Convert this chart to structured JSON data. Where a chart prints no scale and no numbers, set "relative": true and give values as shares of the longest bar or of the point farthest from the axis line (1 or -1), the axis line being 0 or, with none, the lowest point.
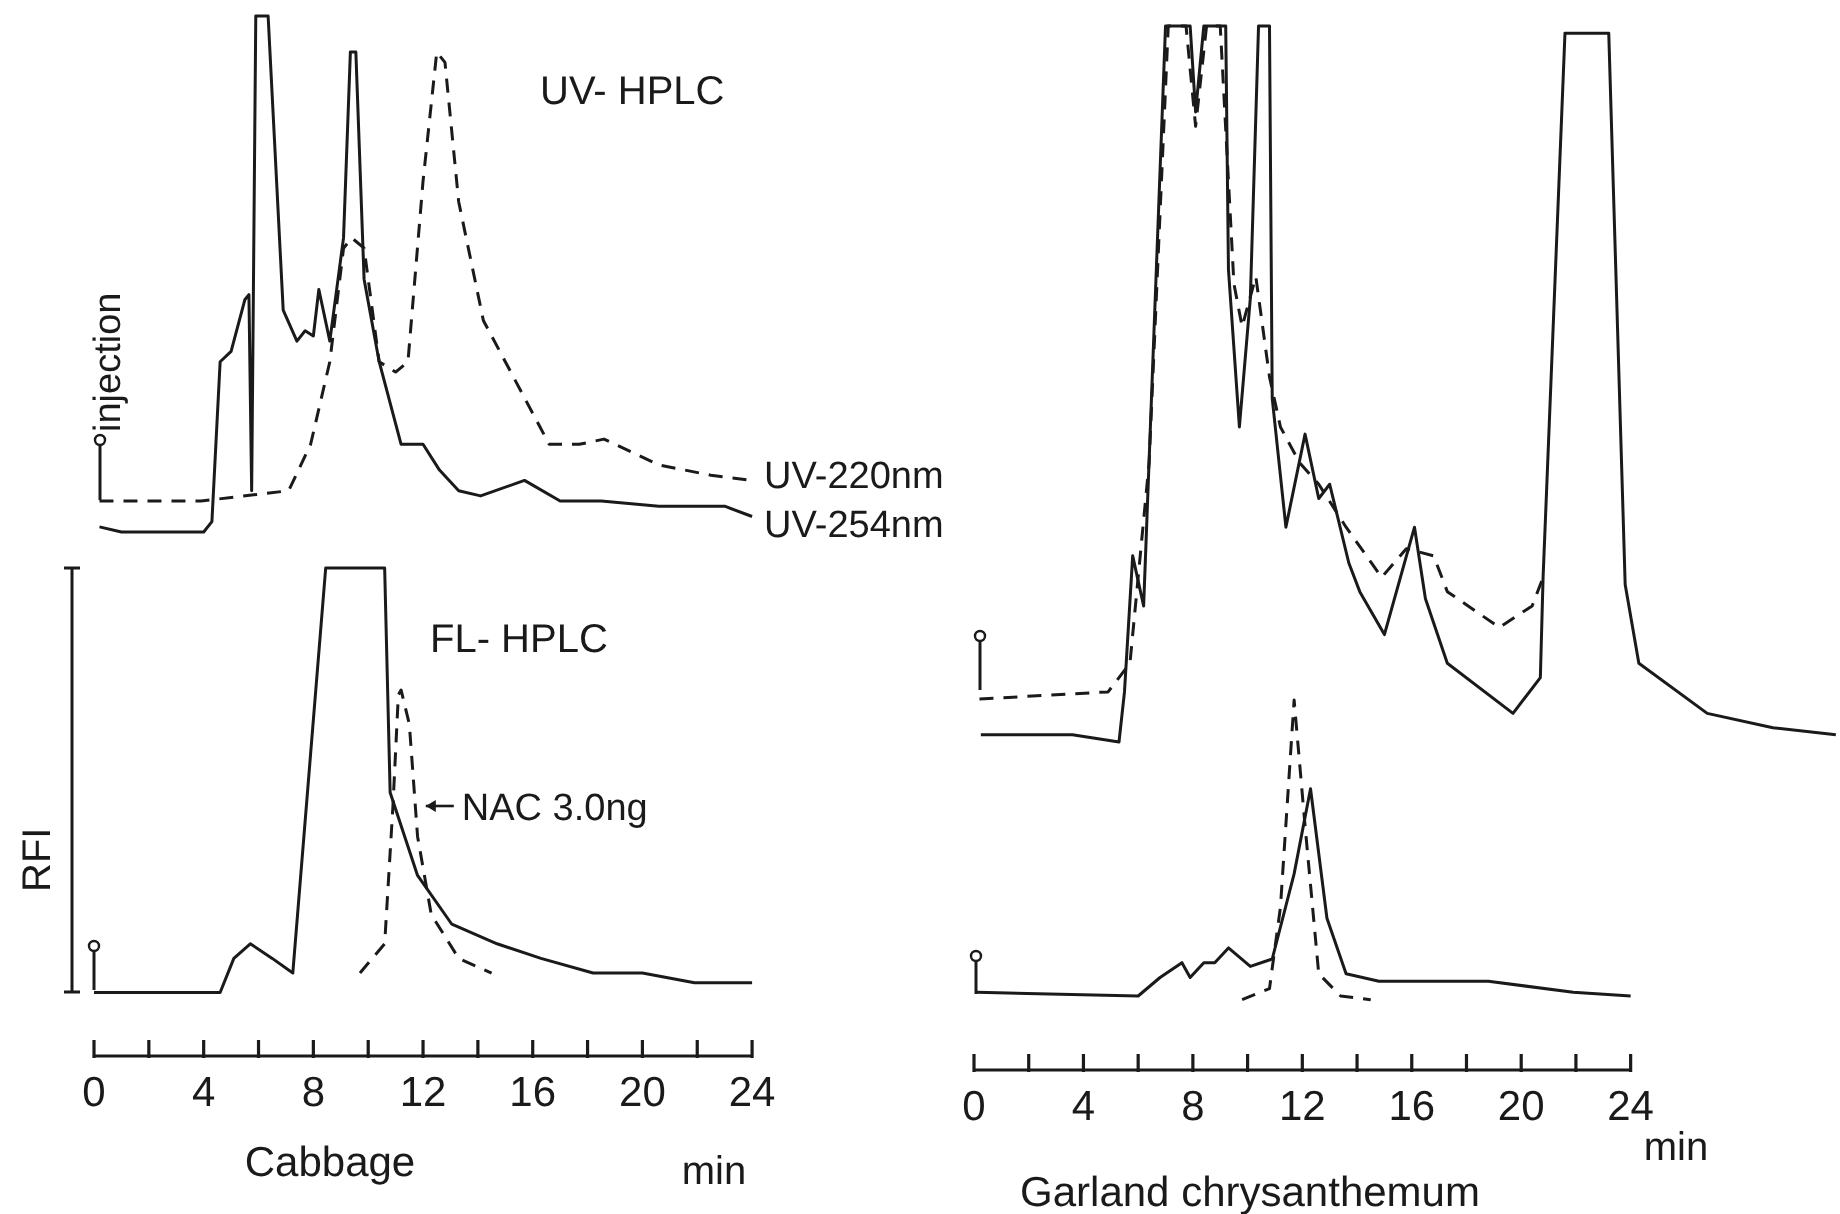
{
  "chart_data": [
    {
      "type": "line",
      "title": "UV- HPLC",
      "relative": true,
      "xlim": [
        0,
        24
      ],
      "tick_labels": false,
      "annotations": [
        "injection"
      ],
      "series": [
        {
          "name": "UV-220nm",
          "color": "#1a1a1a",
          "line_style": "dashed",
          "x": [
            0.2,
            3.9,
            7.1,
            7.9,
            8.6,
            9.1,
            9.4,
            9.85,
            10.4,
            11,
            11.45,
            12,
            12.5,
            12.8,
            13.3,
            14.2,
            15.4,
            16.6,
            17.7,
            18.6,
            20.6,
            22.5,
            24
          ],
          "values": [
            0.06,
            0.06,
            0.08,
            0.17,
            0.33,
            0.55,
            0.57,
            0.55,
            0.33,
            0.31,
            0.33,
            0.68,
            0.93,
            0.91,
            0.64,
            0.41,
            0.29,
            0.17,
            0.17,
            0.18,
            0.13,
            0.11,
            0.1
          ]
        },
        {
          "name": "UV-254nm",
          "color": "#1a1a1a",
          "line_style": "solid",
          "x": [
            0.2,
            1,
            2,
            3,
            4,
            4.3,
            4.6,
            5,
            5.5,
            5.65,
            5.75,
            5.9,
            6.35,
            6.9,
            7.4,
            7.7,
            8,
            8.2,
            8.6,
            9.1,
            9.35,
            9.55,
            9.85,
            10.4,
            11.2,
            12,
            12.6,
            13.3,
            14.1,
            15.7,
            17,
            18.5,
            20.6,
            23,
            24
          ],
          "values": [
            0.01,
            0,
            0,
            0,
            0,
            0.02,
            0.33,
            0.35,
            0.45,
            0.46,
            0.08,
            1,
            1,
            0.43,
            0.37,
            0.39,
            0.38,
            0.47,
            0.37,
            0.57,
            0.93,
            0.93,
            0.49,
            0.33,
            0.17,
            0.17,
            0.12,
            0.08,
            0.07,
            0.1,
            0.06,
            0.06,
            0.05,
            0.05,
            0.03
          ]
        }
      ]
    },
    {
      "type": "line",
      "title": "FL- HPLC",
      "ylabel": "RFI",
      "xlabel": "min",
      "relative": true,
      "xlim": [
        0,
        24
      ],
      "tick_labels": "x",
      "annotations": [
        "Cabbage"
      ],
      "xticks": [
        0,
        {
          "value": 2,
          "label": null
        },
        4,
        {
          "value": 6,
          "label": null
        },
        8,
        {
          "value": 10,
          "label": null
        },
        12,
        {
          "value": 14,
          "label": null
        },
        16,
        {
          "value": 18,
          "label": null
        },
        20,
        {
          "value": 22,
          "label": null
        },
        24
      ],
      "series": [
        {
          "color": "#1a1a1a",
          "line_style": "solid",
          "x": [
            0,
            4.6,
            5.1,
            5.7,
            6.5,
            7.25,
            8.45,
            10.6,
            10.8,
            11.8,
            13.05,
            14.7,
            16.3,
            18.2,
            20,
            21.9,
            24
          ],
          "values": [
            0.13,
            0.13,
            0.2,
            0.23,
            0.2,
            0.17,
            1,
            1,
            0.54,
            0.37,
            0.27,
            0.23,
            0.2,
            0.17,
            0.17,
            0.15,
            0.15
          ]
        },
        {
          "name": "NAC 3.0ng",
          "color": "#1a1a1a",
          "line_style": "dashed",
          "x": [
            9.7,
            10.6,
            10.9,
            11.1,
            11.2,
            11.5,
            11.8,
            12.3,
            13.3,
            14.5
          ],
          "values": [
            0.17,
            0.23,
            0.51,
            0.74,
            0.75,
            0.68,
            0.45,
            0.29,
            0.2,
            0.17
          ]
        }
      ]
    },
    {
      "type": "line",
      "relative": true,
      "xlim": [
        0,
        31.5
      ],
      "tick_labels": false,
      "xticks": [
        0,
        4,
        8,
        12,
        16,
        20,
        24
      ],
      "series": [
        {
          "color": "#1a1a1a",
          "line_style": "solid",
          "x": [
            0.25,
            3.1,
            3.6,
            5.3,
            5.5,
            5.8,
            6.2,
            7,
            7.9,
            8.1,
            8.4,
            9.2,
            9.3,
            9.7,
            10.1,
            10.4,
            10.8,
            10.9,
            11.4,
            12.1,
            12.6,
            13,
            13.7,
            14.1,
            15,
            16.1,
            16.5,
            17.3,
            19.7,
            20.7,
            20.8,
            21.6,
            23.2,
            23.8,
            24.3,
            26.8,
            29.2,
            31.5
          ],
          "values": [
            0.01,
            0.01,
            0.01,
            0,
            0.07,
            0.26,
            0.19,
            1,
            1,
            0.88,
            1,
            1,
            0.66,
            0.44,
            0.62,
            1,
            1,
            0.48,
            0.3,
            0.43,
            0.34,
            0.36,
            0.25,
            0.21,
            0.15,
            0.3,
            0.2,
            0.11,
            0.04,
            0.09,
            0.23,
            0.99,
            0.99,
            0.22,
            0.11,
            0.04,
            0.02,
            0.01
          ]
        },
        {
          "color": "#1a1a1a",
          "line_style": "dashed",
          "x": [
            0.2,
            4.9,
            5.7,
            6.4,
            7.1,
            7.75,
            8.1,
            8.5,
            9,
            9.5,
            9.8,
            10.3,
            10.8,
            11.2,
            11.9,
            12.6,
            13.6,
            14.9,
            15.8,
            16.8,
            17.3,
            19.2,
            20.4,
            20.8
          ],
          "values": [
            0.06,
            0.07,
            0.11,
            0.39,
            1,
            1,
            0.86,
            1,
            1,
            0.64,
            0.58,
            0.65,
            0.51,
            0.44,
            0.39,
            0.36,
            0.3,
            0.23,
            0.27,
            0.26,
            0.21,
            0.16,
            0.19,
            0.23
          ]
        }
      ]
    },
    {
      "type": "line",
      "xlabel": "min",
      "relative": true,
      "xlim": [
        0,
        24
      ],
      "tick_labels": "x",
      "annotations": [
        "Garland chrysanthemum"
      ],
      "xticks": [
        0,
        {
          "value": 2,
          "label": null
        },
        4,
        {
          "value": 6,
          "label": null
        },
        8,
        {
          "value": 10,
          "label": null
        },
        12,
        {
          "value": 14,
          "label": null
        },
        16,
        {
          "value": 18,
          "label": null
        },
        20,
        {
          "value": 22,
          "label": null
        },
        24
      ],
      "series": [
        {
          "color": "#1a1a1a",
          "line_style": "solid",
          "x": [
            0.1,
            6,
            6.8,
            7.6,
            7.9,
            8.4,
            8.8,
            9.3,
            10.1,
            10.9,
            11.7,
            12.3,
            12.9,
            13.6,
            14.8,
            17.7,
            18.8,
            21.9,
            24
          ],
          "values": [
            0.21,
            0.2,
            0.25,
            0.29,
            0.25,
            0.29,
            0.29,
            0.33,
            0.28,
            0.3,
            0.53,
            0.76,
            0.41,
            0.26,
            0.24,
            0.24,
            0.24,
            0.21,
            0.2
          ]
        },
        {
          "color": "#1a1a1a",
          "line_style": "dashed",
          "x": [
            9.8,
            10.8,
            11.2,
            11.7,
            12.1,
            12.6,
            13.4,
            14.5
          ],
          "values": [
            0.19,
            0.22,
            0.44,
            1,
            0.66,
            0.26,
            0.2,
            0.19
          ]
        }
      ]
    }
  ]
}
